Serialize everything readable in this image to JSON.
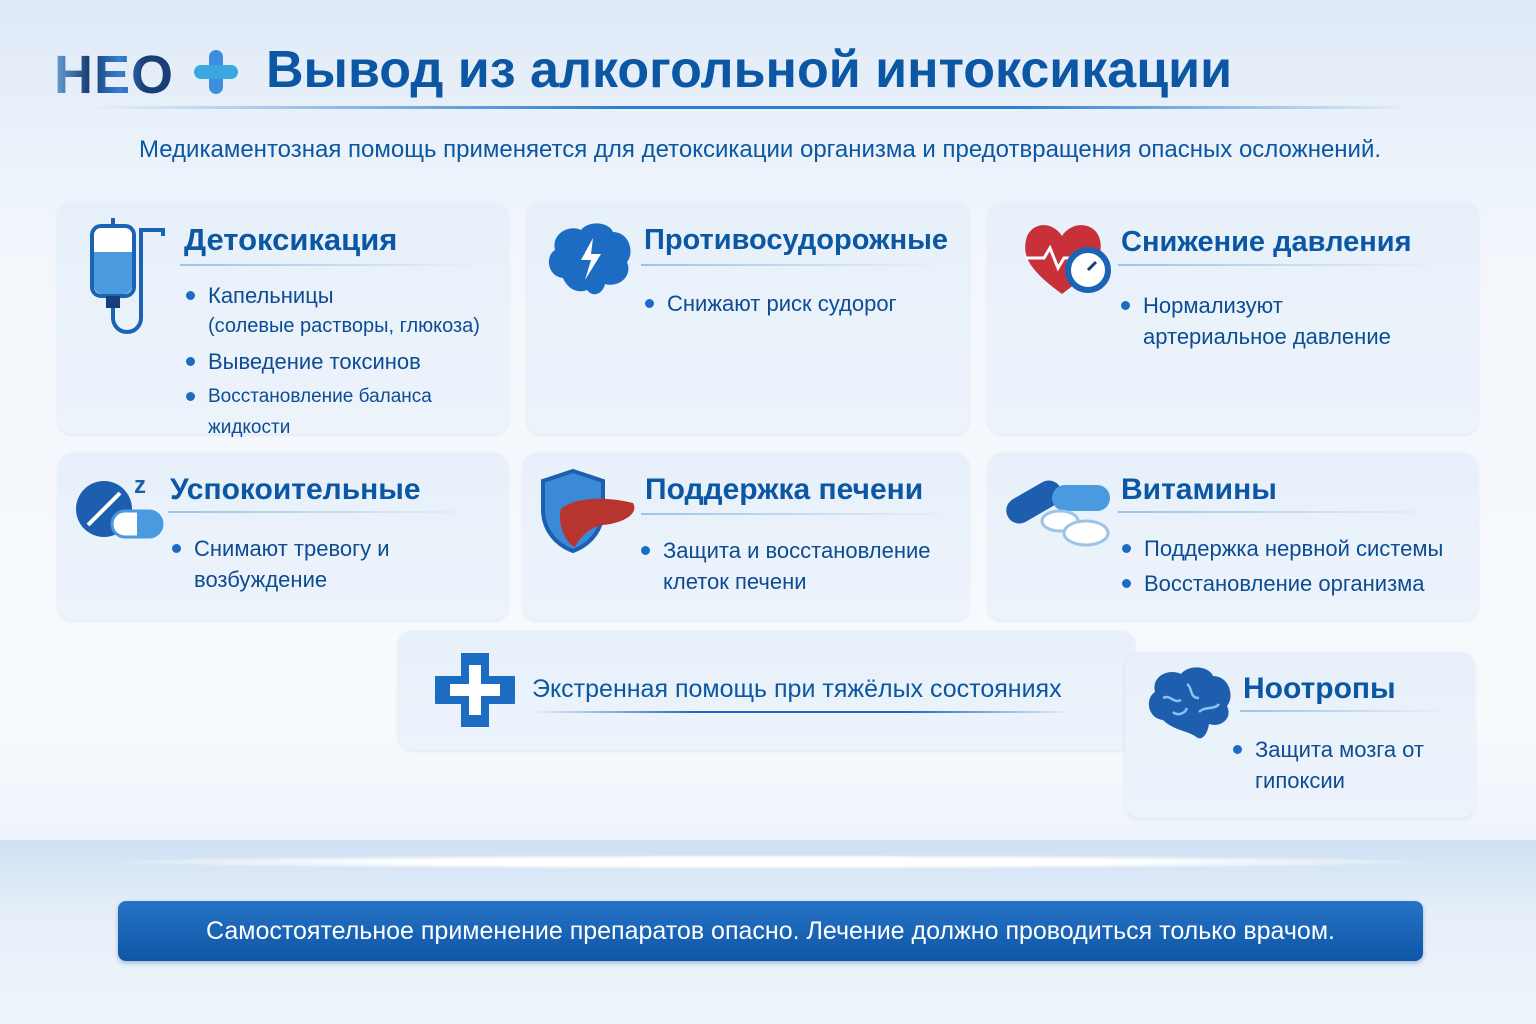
{
  "logo": {
    "text": "НЕО",
    "plus": "+"
  },
  "header": {
    "title": "Вывод из алкогольной интоксикации",
    "subtitle": "Медикаментозная помощь применяется для детоксикации организма и предотвращения опасных осложнений."
  },
  "cards": [
    {
      "title": "Детоксикация",
      "icon": "iv-drip-icon",
      "items": [
        {
          "text": "Капельницы",
          "sub": "(солевые растворы, глюкоза)"
        },
        {
          "text": "Выведение токсинов"
        },
        {
          "text": "Восстановление баланса жидкости"
        }
      ]
    },
    {
      "title": "Противосудорожные",
      "icon": "brain-lightning-icon",
      "items": [
        {
          "text": "Снижают риск судорог"
        }
      ]
    },
    {
      "title": "Снижение давления",
      "icon": "heart-pressure-gauge-icon",
      "items": [
        {
          "text": "Нормализуют артериальное давление"
        }
      ]
    },
    {
      "title": "Успокоительные",
      "icon": "sleep-pills-icon",
      "items": [
        {
          "text": "Снимают тревогу и возбуждение"
        }
      ]
    },
    {
      "title": "Поддержка печени",
      "icon": "liver-shield-icon",
      "items": [
        {
          "text": "Защита и восстановление клеток печени"
        }
      ]
    },
    {
      "title": "Витамины",
      "icon": "vitamin-pills-icon",
      "items": [
        {
          "text": "Поддержка нервной системы"
        },
        {
          "text": "Восстановление организма"
        }
      ]
    },
    {
      "title": "Ноотропы",
      "icon": "brain-icon",
      "items": [
        {
          "text": "Защита мозга от гипоксии"
        }
      ]
    }
  ],
  "emergency": {
    "text": "Экстренная помощь при тяжёлых состояниях",
    "icon": "medical-cross-icon"
  },
  "footer": {
    "warning": "Самостоятельное применение препаратов опасно. Лечение должно проводиться только врачом."
  },
  "colors": {
    "primary": "#0b57a4",
    "accent": "#1d6cc4",
    "heart": "#c9313a",
    "banner": "#1560b0"
  }
}
